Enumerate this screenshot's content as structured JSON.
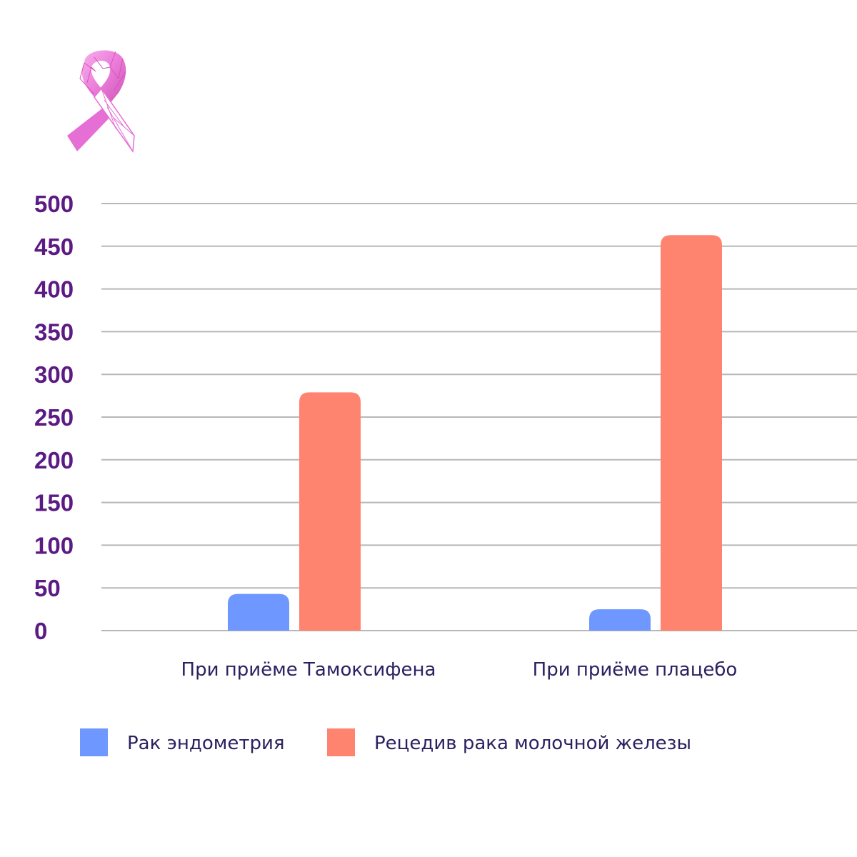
{
  "chart_data": {
    "type": "bar",
    "categories": [
      "При приёме Тамоксифена",
      "При приёме плацебо"
    ],
    "series": [
      {
        "name": "Рак эндометрия",
        "values": [
          43,
          25
        ],
        "color": "#6e97ff"
      },
      {
        "name": "Рецедив рака молочной железы",
        "values": [
          279,
          463
        ],
        "color": "#ff8470"
      }
    ],
    "ylim": [
      0,
      500
    ],
    "yticks": [
      0,
      50,
      100,
      150,
      200,
      250,
      300,
      350,
      400,
      450,
      500
    ],
    "grid": true,
    "legend_position": "bottom-left",
    "title": "",
    "xlabel": "",
    "ylabel": ""
  },
  "logo": {
    "icon": "pink-ribbon-icon",
    "color": "#e66fd6"
  }
}
